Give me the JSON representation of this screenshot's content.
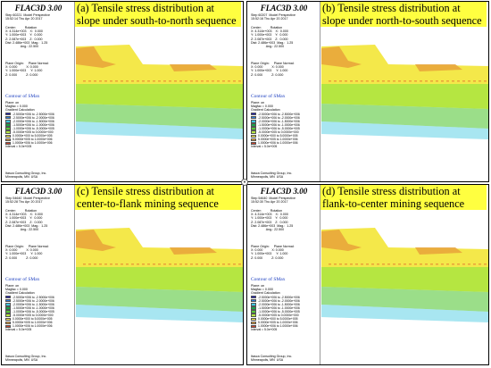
{
  "panels": [
    {
      "caption": "(a) Tensile stress distribution at slope under south-to-north sequence",
      "logo": "FLAC3D 3.00",
      "step_line": "Step 60221  Model Perspective",
      "time_line": "15:52:14 Thu Apr 20 2017"
    },
    {
      "caption": "(b) Tensile stress distribution at slope under north-to-south sequence",
      "logo": "FLAC3D 3.00",
      "step_line": "Step 60207  Model Perspective",
      "time_line": "15:52:16 Thu Apr 20 2017"
    },
    {
      "caption": "(c) Tensile stress distribution at center-to-flank mining sequence",
      "logo": "FLAC3D 3.00",
      "step_line": "Step 54640  Model Perspective",
      "time_line": "15:52:28 Thu Apr 20 2017"
    },
    {
      "caption": "(d) Tensile stress distribution at flank-to-center mining sequence",
      "logo": "FLAC3D 3.00",
      "step_line": "Step 54640  Model Perspective",
      "time_line": "15:52:30 Thu Apr 20 2017"
    }
  ],
  "common": {
    "view_block": "Center:          Rotation\nX: 4.314e+003    X:  0.000\nY: 1.000e+003    Y:  0.000\nZ: 2.087e+003    Z:  0.000\nDist: 2.486e+003  Mag.:  1.25\n                 Ang.: 22.500",
    "plane_block": "Plane Origin:     Plane Normal:\nX: 0.000          X: 0.000\nY: 1.000e+003     Y: 1.000\nZ: 0.000          Z: 0.000",
    "contour_title": "Contour of SMax",
    "legend_header": "Plane: on\nMagfac = 0.000\nGradient Calculation",
    "legend_items": [
      {
        "label": "-2.5000e+006 to -2.5000e+006",
        "color": "#1f1fbf"
      },
      {
        "label": "-2.5000e+006 to -2.0000e+006",
        "color": "#2a7fe0"
      },
      {
        "label": "-2.0000e+006 to -1.5000e+006",
        "color": "#3fc7e0"
      },
      {
        "label": "-1.5000e+006 to -1.0000e+006",
        "color": "#19a34a"
      },
      {
        "label": "-1.0000e+006 to -5.0000e+005",
        "color": "#58c83a"
      },
      {
        "label": "-5.0000e+005 to  0.0000e+000",
        "color": "#b5e641"
      },
      {
        "label": " 0.0000e+000 to  5.0000e+005",
        "color": "#f4e84a"
      },
      {
        "label": " 5.0000e+005 to  1.0000e+006",
        "color": "#e8a23a"
      },
      {
        "label": " 1.0000e+006 to  1.0000e+006",
        "color": "#d0432c"
      }
    ],
    "interval": "Interval = 5.0e+005",
    "footer": "Itasca Consulting Group, Inc.\nMinneapolis, MN  USA"
  },
  "colors": {
    "caption_bg": "#ffff40",
    "band_top": "#f4e84a",
    "band_tensile": "#e8a23a",
    "band_light": "#b5e641",
    "band_green": "#58c83a",
    "band_cyan": "#3fc7e0"
  }
}
